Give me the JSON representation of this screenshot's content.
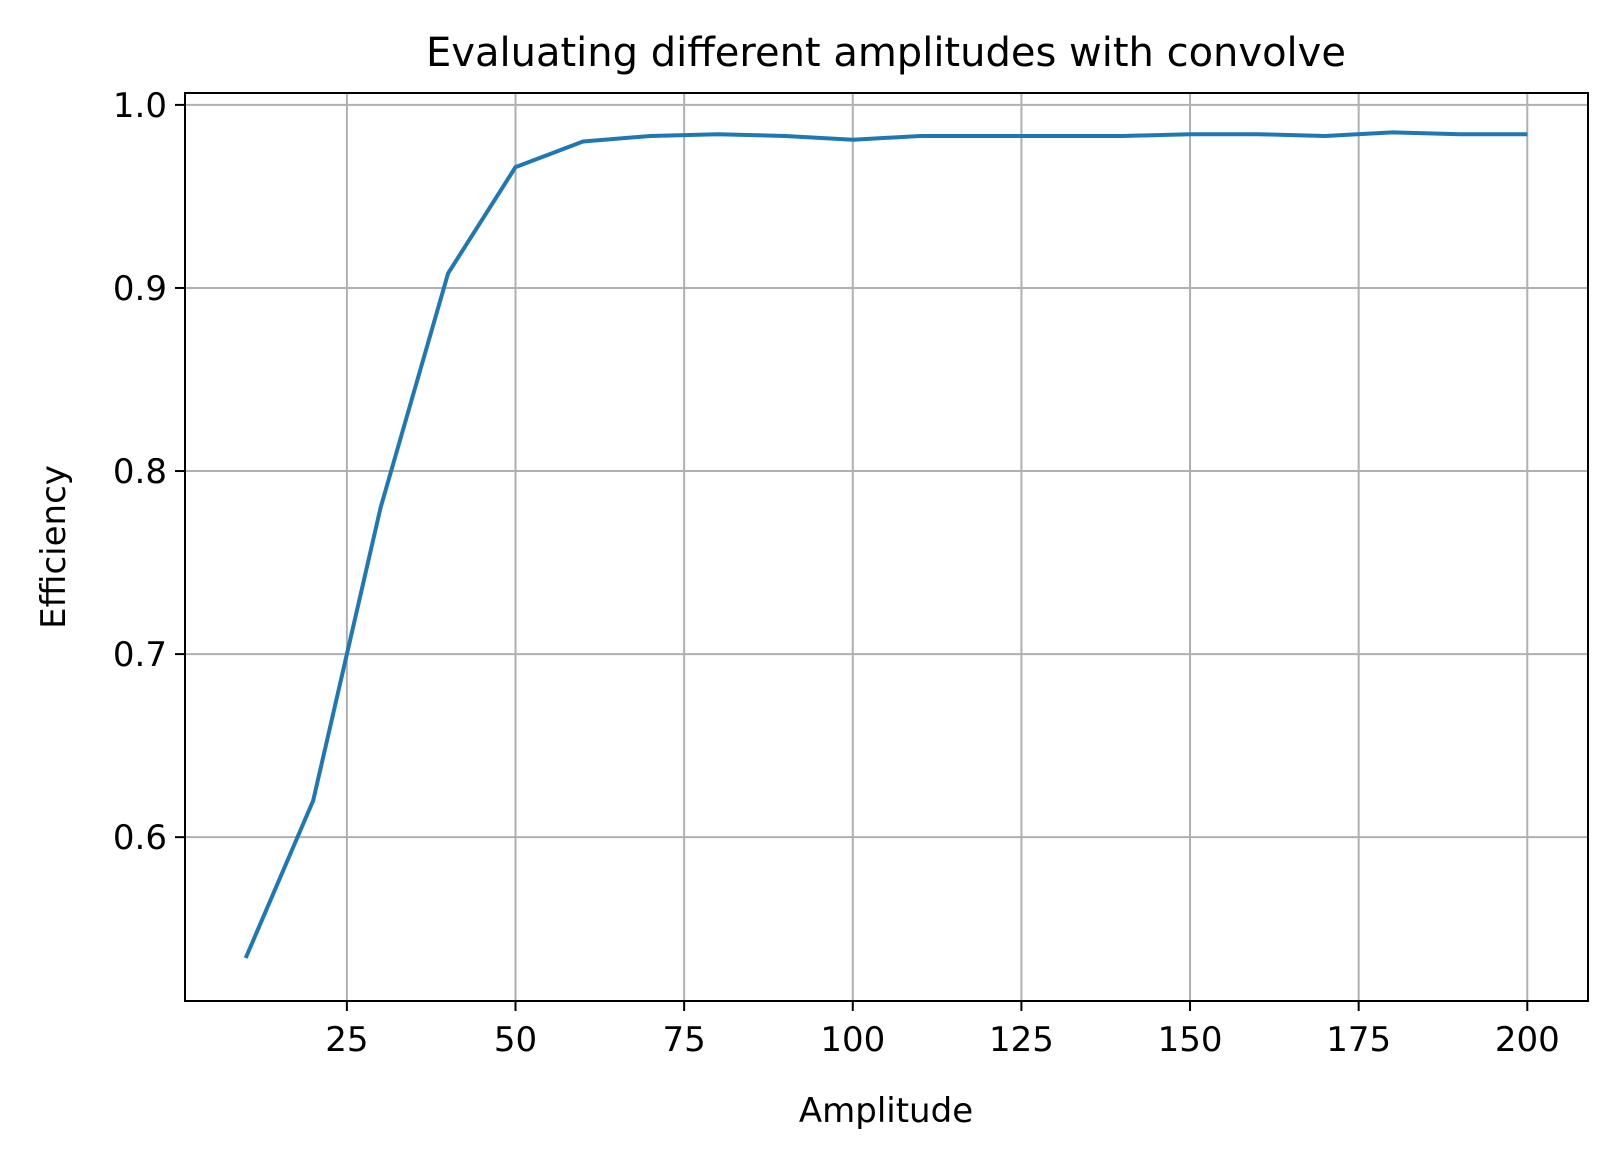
{
  "chart_data": {
    "type": "line",
    "title": "Evaluating different amplitudes with convolve",
    "xlabel": "Amplitude",
    "ylabel": "Efficiency",
    "xlim": [
      1,
      209
    ],
    "ylim": [
      0.5105,
      1.0065
    ],
    "xticks": [
      25,
      50,
      75,
      100,
      125,
      150,
      175,
      200
    ],
    "xtick_labels": [
      "25",
      "50",
      "75",
      "100",
      "125",
      "150",
      "175",
      "200"
    ],
    "yticks": [
      0.6,
      0.7,
      0.8,
      0.9,
      1.0
    ],
    "ytick_labels": [
      "0.6",
      "0.7",
      "0.8",
      "0.9",
      "1.0"
    ],
    "grid": true,
    "legend": false,
    "series": [
      {
        "color": "#1f77b4",
        "x": [
          10,
          20,
          30,
          40,
          50,
          60,
          70,
          80,
          90,
          100,
          110,
          120,
          130,
          140,
          150,
          160,
          170,
          180,
          190,
          200
        ],
        "y": [
          0.534,
          0.62,
          0.78,
          0.908,
          0.966,
          0.98,
          0.983,
          0.984,
          0.983,
          0.981,
          0.983,
          0.983,
          0.983,
          0.983,
          0.984,
          0.984,
          0.983,
          0.985,
          0.984,
          0.984
        ]
      }
    ]
  }
}
